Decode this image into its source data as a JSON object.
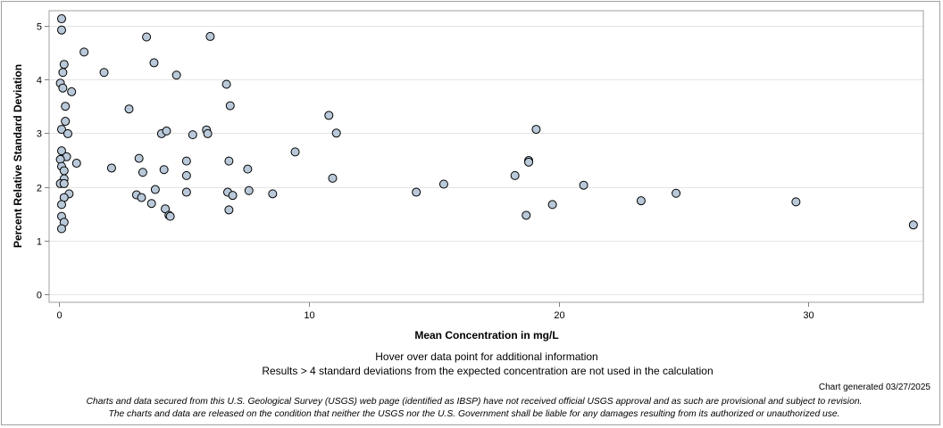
{
  "chart_data": {
    "type": "scatter",
    "title": "",
    "xlabel": "Mean Concentration in mg/L",
    "ylabel": "Percent Relative Standard Deviation",
    "xlim": [
      -0.4,
      34.6
    ],
    "ylim": [
      -0.15,
      5.28
    ],
    "xticks": [
      0,
      10,
      20,
      30
    ],
    "yticks": [
      0,
      1,
      2,
      3,
      4,
      5
    ],
    "grid": "horizontal",
    "point_color": "#b9c9d9",
    "point_edge": "#000000",
    "points": [
      [
        0.1,
        5.13
      ],
      [
        0.1,
        4.92
      ],
      [
        0.2,
        4.28
      ],
      [
        0.15,
        4.13
      ],
      [
        0.05,
        3.93
      ],
      [
        0.15,
        3.84
      ],
      [
        0.5,
        3.77
      ],
      [
        0.25,
        3.5
      ],
      [
        0.25,
        3.22
      ],
      [
        0.1,
        3.07
      ],
      [
        0.35,
        2.99
      ],
      [
        0.1,
        2.67
      ],
      [
        0.3,
        2.56
      ],
      [
        0.05,
        2.51
      ],
      [
        0.7,
        2.44
      ],
      [
        0.1,
        2.38
      ],
      [
        0.2,
        2.3
      ],
      [
        0.2,
        2.15
      ],
      [
        0.05,
        2.06
      ],
      [
        0.2,
        2.06
      ],
      [
        0.4,
        1.87
      ],
      [
        0.2,
        1.8
      ],
      [
        0.1,
        1.67
      ],
      [
        0.1,
        1.45
      ],
      [
        0.2,
        1.34
      ],
      [
        0.1,
        1.22
      ],
      [
        1.0,
        4.51
      ],
      [
        1.8,
        4.13
      ],
      [
        2.1,
        2.35
      ],
      [
        2.8,
        3.45
      ],
      [
        3.1,
        1.85
      ],
      [
        3.2,
        2.53
      ],
      [
        3.3,
        1.8
      ],
      [
        3.35,
        2.27
      ],
      [
        3.5,
        4.79
      ],
      [
        3.7,
        1.69
      ],
      [
        3.8,
        4.31
      ],
      [
        3.85,
        1.95
      ],
      [
        4.1,
        2.99
      ],
      [
        4.2,
        2.32
      ],
      [
        4.25,
        1.59
      ],
      [
        4.3,
        3.04
      ],
      [
        4.4,
        1.47
      ],
      [
        4.45,
        1.45
      ],
      [
        4.7,
        4.08
      ],
      [
        5.1,
        2.48
      ],
      [
        5.1,
        2.21
      ],
      [
        5.1,
        1.9
      ],
      [
        5.35,
        2.97
      ],
      [
        5.9,
        3.06
      ],
      [
        5.95,
        2.99
      ],
      [
        6.05,
        4.8
      ],
      [
        6.7,
        3.91
      ],
      [
        6.75,
        1.9
      ],
      [
        6.8,
        2.48
      ],
      [
        6.8,
        1.57
      ],
      [
        6.85,
        3.51
      ],
      [
        6.95,
        1.84
      ],
      [
        7.55,
        2.33
      ],
      [
        7.6,
        1.93
      ],
      [
        8.55,
        1.87
      ],
      [
        9.45,
        2.65
      ],
      [
        10.8,
        3.33
      ],
      [
        10.95,
        2.16
      ],
      [
        11.1,
        3.0
      ],
      [
        14.3,
        1.9
      ],
      [
        15.4,
        2.05
      ],
      [
        18.25,
        2.21
      ],
      [
        18.7,
        1.47
      ],
      [
        18.8,
        2.49
      ],
      [
        18.8,
        2.46
      ],
      [
        19.1,
        3.07
      ],
      [
        19.75,
        1.67
      ],
      [
        21.0,
        2.03
      ],
      [
        23.3,
        1.74
      ],
      [
        24.7,
        1.88
      ],
      [
        29.5,
        1.72
      ],
      [
        34.2,
        1.29
      ]
    ]
  },
  "notes": {
    "hover": "Hover over data point for additional information",
    "exclusion": "Results > 4 standard deviations from the expected concentration are not used in the calculation",
    "generated": "Chart generated 03/27/2025",
    "disclaimer_line1": "Charts and data secured from this U.S. Geological Survey (USGS) web page (identified as IBSP) have not received official USGS approval and as such are provisional and subject to revision.",
    "disclaimer_line2": "The charts and data are released on the condition that neither the USGS nor the U.S. Government shall be liable for any damages resulting from its authorized or unauthorized use."
  }
}
